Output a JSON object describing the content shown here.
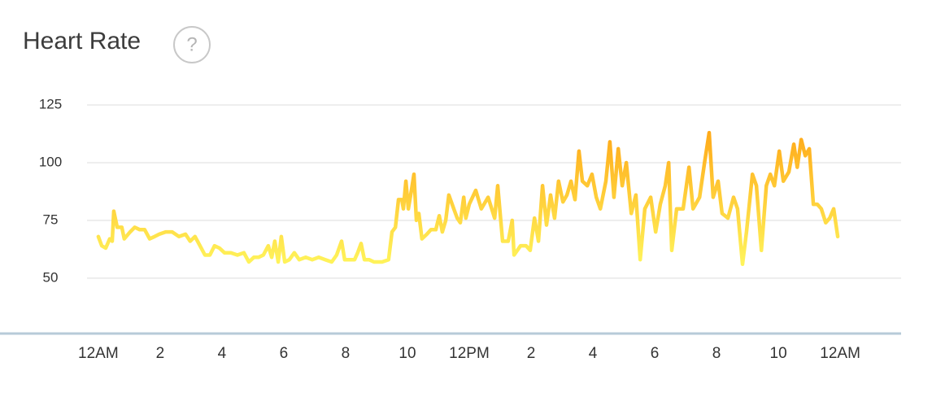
{
  "chart_data": {
    "type": "line",
    "title": "Heart Rate",
    "help_icon": "?",
    "x": [
      0,
      0.11,
      0.24,
      0.37,
      0.45,
      0.5,
      0.61,
      0.76,
      0.84,
      1.03,
      1.18,
      1.34,
      1.5,
      1.66,
      1.82,
      1.97,
      2.18,
      2.39,
      2.61,
      2.82,
      2.97,
      3.13,
      3.29,
      3.45,
      3.61,
      3.76,
      3.92,
      4.08,
      4.29,
      4.5,
      4.71,
      4.87,
      5.03,
      5.18,
      5.34,
      5.5,
      5.61,
      5.71,
      5.82,
      5.92,
      6.03,
      6.18,
      6.34,
      6.5,
      6.71,
      6.92,
      7.13,
      7.34,
      7.55,
      7.71,
      7.87,
      7.97,
      8.13,
      8.29,
      8.39,
      8.5,
      8.61,
      8.76,
      8.92,
      9.18,
      9.39,
      9.5,
      9.61,
      9.71,
      9.82,
      9.87,
      9.95,
      10.03,
      10.13,
      10.21,
      10.29,
      10.37,
      10.47,
      10.63,
      10.76,
      10.92,
      11.03,
      11.13,
      11.24,
      11.34,
      11.5,
      11.61,
      11.71,
      11.82,
      11.89,
      12.0,
      12.21,
      12.39,
      12.61,
      12.82,
      12.92,
      13.08,
      13.26,
      13.39,
      13.45,
      13.66,
      13.84,
      13.97,
      14.11,
      14.24,
      14.37,
      14.5,
      14.63,
      14.76,
      14.89,
      15.03,
      15.16,
      15.29,
      15.42,
      15.55,
      15.66,
      15.82,
      15.97,
      16.11,
      16.24,
      16.42,
      16.55,
      16.68,
      16.82,
      16.95,
      17.08,
      17.24,
      17.39,
      17.53,
      17.68,
      17.87,
      18.03,
      18.18,
      18.34,
      18.45,
      18.55,
      18.71,
      18.92,
      19.11,
      19.24,
      19.45,
      19.61,
      19.76,
      19.89,
      20.05,
      20.18,
      20.37,
      20.55,
      20.68,
      20.84,
      20.97,
      21.16,
      21.29,
      21.45,
      21.61,
      21.74,
      21.87,
      22.03,
      22.16,
      22.34,
      22.5,
      22.61,
      22.74,
      22.87,
      23.0,
      23.13,
      23.26,
      23.39,
      23.53,
      23.66,
      23.79,
      23.92
    ],
    "series": [
      {
        "values": [
          68,
          64,
          63,
          67,
          66,
          79,
          72,
          72,
          67,
          70,
          72,
          71,
          71,
          67,
          68,
          69,
          70,
          70,
          68,
          69,
          66,
          68,
          64,
          60,
          60,
          64,
          63,
          61,
          61,
          60,
          61,
          57,
          59,
          59,
          60,
          64,
          59,
          66,
          57,
          68,
          57,
          58,
          61,
          58,
          59,
          58,
          59,
          58,
          57,
          60,
          66,
          58,
          58,
          58,
          61,
          65,
          58,
          58,
          57,
          57,
          58,
          70,
          72,
          84,
          84,
          80,
          92,
          80,
          88,
          95,
          75,
          78,
          67,
          69,
          71,
          71,
          77,
          70,
          75,
          86,
          80,
          76,
          74,
          85,
          76,
          82,
          88,
          80,
          85,
          76,
          90,
          66,
          66,
          75,
          60,
          64,
          64,
          62,
          76,
          66,
          90,
          73,
          86,
          76,
          92,
          83,
          86,
          92,
          84,
          105,
          92,
          90,
          95,
          85,
          80,
          92,
          109,
          85,
          106,
          90,
          100,
          78,
          86,
          58,
          80,
          85,
          70,
          82,
          90,
          100,
          62,
          80,
          80,
          98,
          80,
          85,
          100,
          113,
          85,
          92,
          78,
          76,
          85,
          80,
          56,
          70,
          95,
          90,
          62,
          90,
          95,
          90,
          105,
          92,
          96,
          108,
          98,
          110,
          103,
          106,
          82,
          82,
          80,
          74,
          76,
          80,
          68
        ]
      }
    ],
    "gradient": [
      "#ffa414",
      "#fff55c"
    ],
    "xlim": [
      -3.18,
      25.97
    ],
    "xticks": [
      {
        "value": 0,
        "label": "12AM"
      },
      2,
      4,
      6,
      8,
      10,
      {
        "value": 12,
        "label": "12PM"
      },
      {
        "value": 14,
        "label": "2"
      },
      {
        "value": 16,
        "label": "4"
      },
      {
        "value": 18,
        "label": "6"
      },
      {
        "value": 20,
        "label": "8"
      },
      {
        "value": 22,
        "label": "10"
      },
      {
        "value": 24,
        "label": "12AM"
      }
    ],
    "ylim": [
      26,
      125
    ],
    "yticks": [
      50,
      75,
      100,
      125
    ],
    "grid": true
  }
}
